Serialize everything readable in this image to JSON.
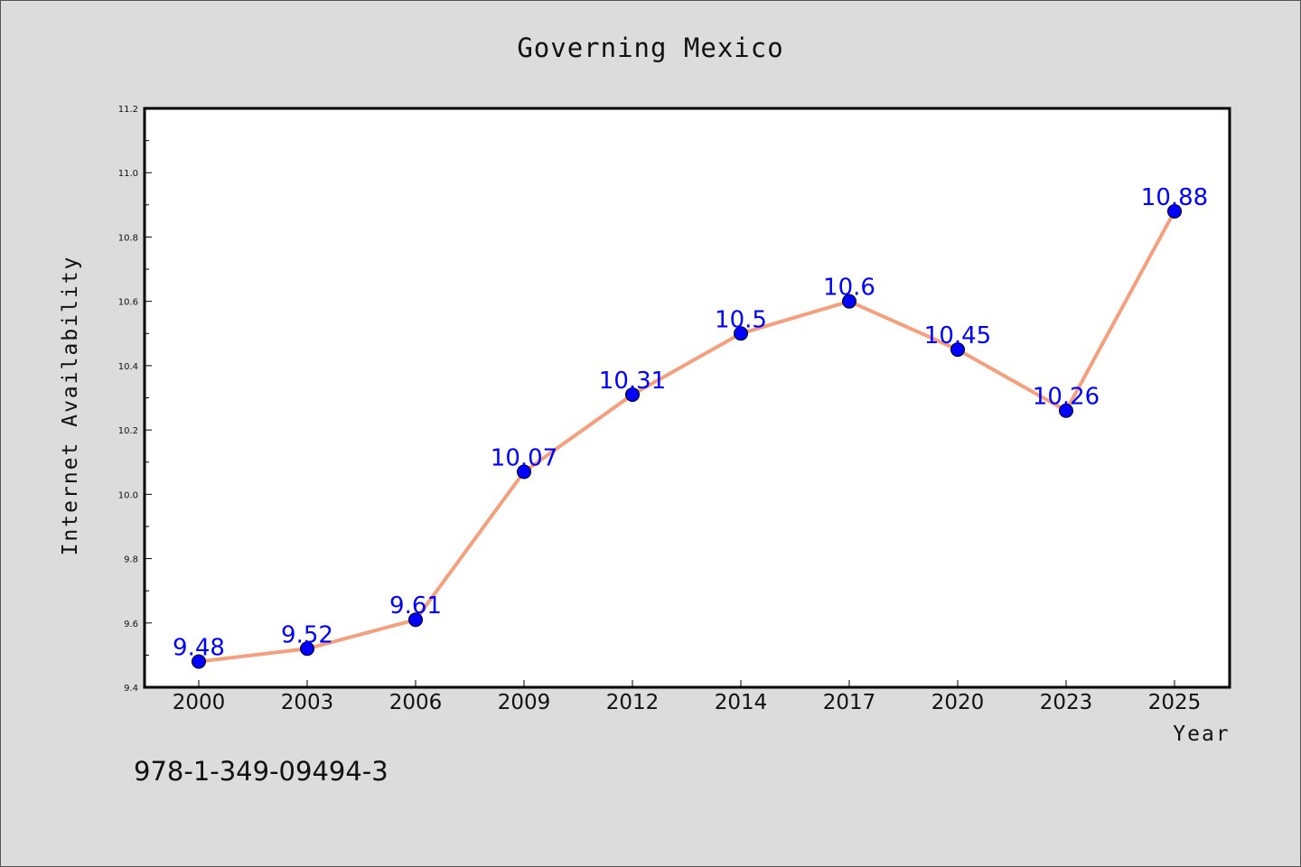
{
  "chart_data": {
    "type": "line",
    "title": "Governing Mexico",
    "xlabel": "Year",
    "ylabel": "Internet Availability",
    "categories": [
      "2000",
      "2003",
      "2006",
      "2009",
      "2012",
      "2014",
      "2017",
      "2020",
      "2023",
      "2025"
    ],
    "series": [
      {
        "values": [
          9.48,
          9.52,
          9.61,
          10.07,
          10.31,
          10.5,
          10.6,
          10.45,
          10.26,
          10.88
        ],
        "data_labels": [
          "9.48",
          "9.52",
          "9.61",
          "10.07",
          "10.31",
          "10.5",
          "10.6",
          "10.45",
          "10.26",
          "10.88"
        ],
        "line_color": "#f4a07e",
        "marker_color": "#0000ff"
      }
    ],
    "ylim": [
      9.4,
      11.2
    ],
    "yticks": [
      "9.4",
      "9.6",
      "9.8",
      "10.0",
      "10.2",
      "10.4",
      "10.6",
      "10.8",
      "11.0",
      "11.2"
    ],
    "grid": false,
    "legend": "none"
  },
  "footer_text": "978-1-349-09494-3",
  "colors": {
    "background": "#dcdcdc",
    "plot_background": "#ffffff"
  }
}
